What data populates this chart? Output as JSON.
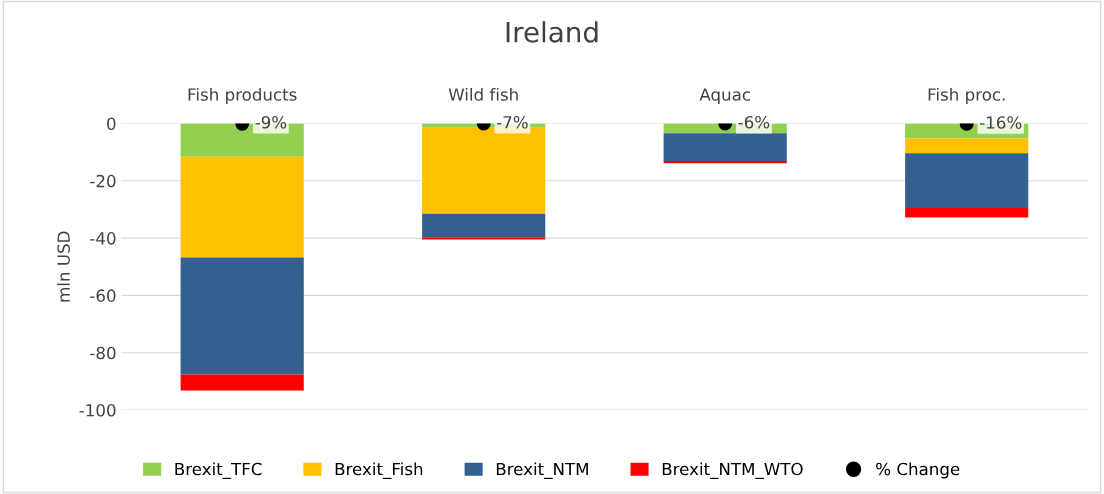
{
  "chart_data": {
    "type": "bar",
    "stacked": true,
    "title": "Ireland",
    "ylabel": "mln USD",
    "categories": [
      "Fish products",
      "Wild fish",
      "Aquac",
      "Fish proc."
    ],
    "series": [
      {
        "name": "Brexit_TFC",
        "color": "#92d050",
        "values": [
          -11.6,
          -1.5,
          -3.4,
          -5.2
        ]
      },
      {
        "name": "Brexit_Fish",
        "color": "#ffc000",
        "values": [
          -35.2,
          -30,
          0,
          -5.2
        ]
      },
      {
        "name": "Brexit_NTM",
        "color": "#34608f",
        "values": [
          -40.8,
          -8.2,
          -9.7,
          -19.1
        ]
      },
      {
        "name": "Brexit_NTM_WTO",
        "color": "#ff0000",
        "values": [
          -5.6,
          -0.8,
          -0.8,
          -3.3
        ]
      },
      {
        "name": "% Change",
        "type": "scatter",
        "color": "#000000",
        "values": [
          -0.09,
          -0.07,
          -0.06,
          -0.16
        ],
        "value_labels": [
          "-9%",
          "-7%",
          "-6%",
          "-16%"
        ]
      }
    ],
    "ylim": [
      -100,
      0
    ],
    "yticks": [
      -100,
      -80,
      -60,
      -40,
      -20,
      0
    ],
    "grid": "y",
    "legend": "bottom",
    "marker": "circle"
  }
}
